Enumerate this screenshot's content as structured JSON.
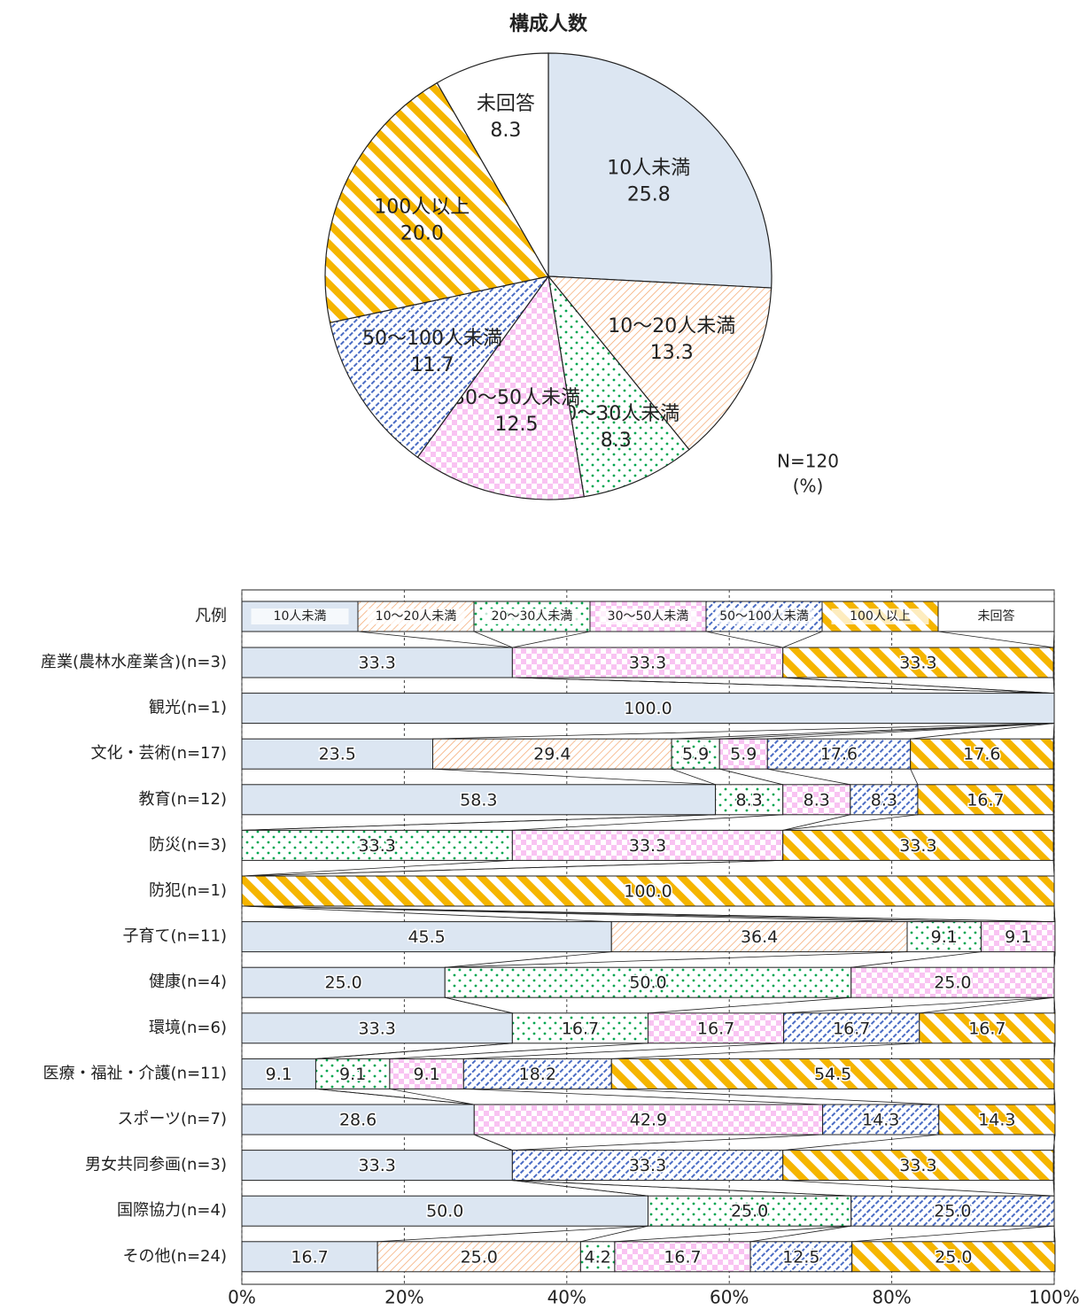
{
  "chart_data": [
    {
      "type": "pie",
      "title": "構成人数",
      "categories": [
        "10人未満",
        "10～20人未満",
        "20～30人未満",
        "30～50人未満",
        "50～100人未満",
        "100人以上",
        "未回答"
      ],
      "values": [
        25.8,
        13.3,
        8.3,
        12.5,
        11.7,
        20.0,
        8.3
      ],
      "value_labels": [
        "25.8",
        "13.3",
        "8.3",
        "12.5",
        "11.7",
        "20.0",
        "8.3"
      ],
      "colors": [
        "#dce6f2",
        "#f4a46a",
        "#00a651",
        "#f9c3f2",
        "#4a6cc4",
        "#f5b500",
        "#ffffff"
      ],
      "annotations": [
        "N=120",
        "(%)"
      ]
    },
    {
      "type": "stacked_bar",
      "orientation": "horizontal",
      "legend_title": "凡例",
      "categories": [
        "産業(農林水産業含)(n=3)",
        "観光(n=1)",
        "文化・芸術(n=17)",
        "教育(n=12)",
        "防災(n=3)",
        "防犯(n=1)",
        "子育て(n=11)",
        "健康(n=4)",
        "環境(n=6)",
        "医療・福祉・介護(n=11)",
        "スポーツ(n=7)",
        "男女共同参画(n=3)",
        "国際協力(n=4)",
        "その他(n=24)"
      ],
      "series": [
        {
          "name": "10人未満",
          "color": "#dce6f2",
          "values": [
            33.3,
            100.0,
            23.5,
            58.3,
            null,
            null,
            45.5,
            25.0,
            33.3,
            9.1,
            28.6,
            33.3,
            50.0,
            16.7
          ],
          "value_labels": [
            "33.3",
            "100.0",
            "23.5",
            "58.3",
            null,
            null,
            "45.5",
            "25.0",
            "33.3",
            "9.1",
            "28.6",
            "33.3",
            "50.0",
            "16.7"
          ]
        },
        {
          "name": "10～20人未満",
          "color": "#f4a46a",
          "values": [
            null,
            null,
            29.4,
            null,
            null,
            null,
            36.4,
            null,
            null,
            null,
            null,
            null,
            null,
            25.0
          ],
          "value_labels": [
            null,
            null,
            "29.4",
            null,
            null,
            null,
            "36.4",
            null,
            null,
            null,
            null,
            null,
            null,
            "25.0"
          ]
        },
        {
          "name": "20～30人未満",
          "color": "#00a651",
          "values": [
            null,
            null,
            5.9,
            8.3,
            33.3,
            null,
            9.1,
            50.0,
            16.7,
            9.1,
            null,
            null,
            25.0,
            4.2
          ],
          "value_labels": [
            null,
            null,
            "5.9",
            "8.3",
            "33.3",
            null,
            "9.1",
            "50.0",
            "16.7",
            "9.1",
            null,
            null,
            "25.0",
            "4.2"
          ]
        },
        {
          "name": "30～50人未満",
          "color": "#f9c3f2",
          "values": [
            33.3,
            null,
            5.9,
            8.3,
            33.3,
            null,
            9.1,
            25.0,
            16.7,
            9.1,
            42.9,
            null,
            null,
            16.7
          ],
          "value_labels": [
            "33.3",
            null,
            "5.9",
            "8.3",
            "33.3",
            null,
            "9.1",
            "25.0",
            "16.7",
            "9.1",
            "42.9",
            null,
            null,
            "16.7"
          ]
        },
        {
          "name": "50～100人未満",
          "color": "#4a6cc4",
          "values": [
            null,
            null,
            17.6,
            8.3,
            null,
            null,
            null,
            null,
            16.7,
            18.2,
            14.3,
            33.3,
            25.0,
            12.5
          ],
          "value_labels": [
            null,
            null,
            "17.6",
            "8.3",
            null,
            null,
            null,
            null,
            "16.7",
            "18.2",
            "14.3",
            "33.3",
            "25.0",
            "12.5"
          ]
        },
        {
          "name": "100人以上",
          "color": "#f5b500",
          "values": [
            33.3,
            null,
            17.6,
            16.7,
            33.3,
            100.0,
            null,
            null,
            16.7,
            54.5,
            14.3,
            33.3,
            null,
            25.0
          ],
          "value_labels": [
            "33.3",
            null,
            "17.6",
            "16.7",
            "33.3",
            "100.0",
            null,
            null,
            "16.7",
            "54.5",
            "14.3",
            "33.3",
            null,
            "25.0"
          ]
        },
        {
          "name": "未回答",
          "color": "#ffffff",
          "values": [
            null,
            null,
            null,
            null,
            null,
            null,
            null,
            null,
            null,
            null,
            null,
            null,
            null,
            null
          ],
          "value_labels": [
            null,
            null,
            null,
            null,
            null,
            null,
            null,
            null,
            null,
            null,
            null,
            null,
            null,
            null
          ]
        }
      ],
      "xlim": [
        0,
        100
      ],
      "xticks": [
        {
          "value": 0,
          "label": "0%"
        },
        {
          "value": 20,
          "label": "20%"
        },
        {
          "value": 40,
          "label": "40%"
        },
        {
          "value": 60,
          "label": "60%"
        },
        {
          "value": 80,
          "label": "80%"
        },
        {
          "value": 100,
          "label": "100%"
        }
      ],
      "grid": true
    }
  ]
}
